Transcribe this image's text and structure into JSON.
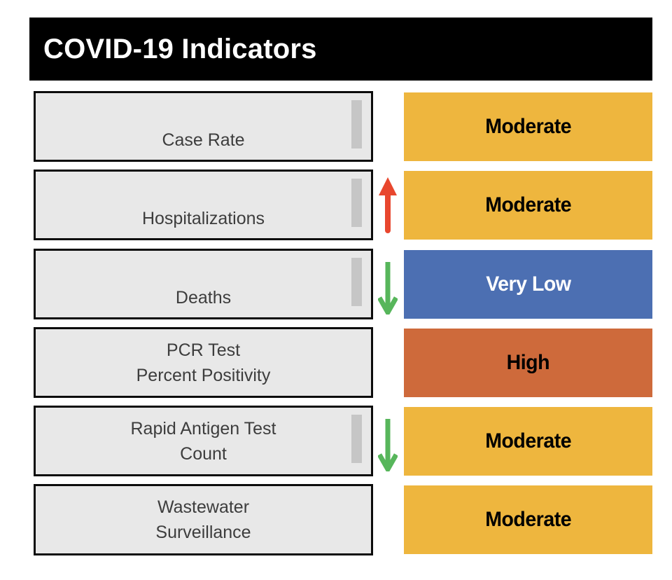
{
  "header": {
    "title": "COVID-19 Indicators"
  },
  "colors": {
    "header_bg": "#000000",
    "header_text": "#FFFFFF",
    "indicator_box_fill": "#E8E8E8",
    "indicator_box_border": "#0C0C0C",
    "scrollbar_thumb": "#C6C6C6",
    "moderate": "#EEB63E",
    "very_low": "#4C6FB2",
    "high": "#CE6A3B",
    "trend_up_arrow": "#E8472E",
    "trend_down_arrow": "#57B65B"
  },
  "rows": [
    {
      "label_line1": "Case Rate",
      "label_line2": "",
      "status": "Moderate",
      "status_color": "#EEB63E",
      "status_text_color": "#000000",
      "trend": "none",
      "has_scrollbar": true
    },
    {
      "label_line1": "Hospitalizations",
      "label_line2": "",
      "status": "Moderate",
      "status_color": "#EEB63E",
      "status_text_color": "#000000",
      "trend": "up",
      "has_scrollbar": true
    },
    {
      "label_line1": "Deaths",
      "label_line2": "",
      "status": "Very Low",
      "status_color": "#4C6FB2",
      "status_text_color": "#FFFFFF",
      "trend": "down",
      "has_scrollbar": true
    },
    {
      "label_line1": "PCR Test",
      "label_line2": "Percent Positivity",
      "status": "High",
      "status_color": "#CE6A3B",
      "status_text_color": "#000000",
      "trend": "none",
      "has_scrollbar": false
    },
    {
      "label_line1": "Rapid Antigen Test",
      "label_line2": "Count",
      "status": "Moderate",
      "status_color": "#EEB63E",
      "status_text_color": "#000000",
      "trend": "down",
      "has_scrollbar": true
    },
    {
      "label_line1": "Wastewater",
      "label_line2": "Surveillance",
      "status": "Moderate",
      "status_color": "#EEB63E",
      "status_text_color": "#000000",
      "trend": "none",
      "has_scrollbar": false
    }
  ]
}
